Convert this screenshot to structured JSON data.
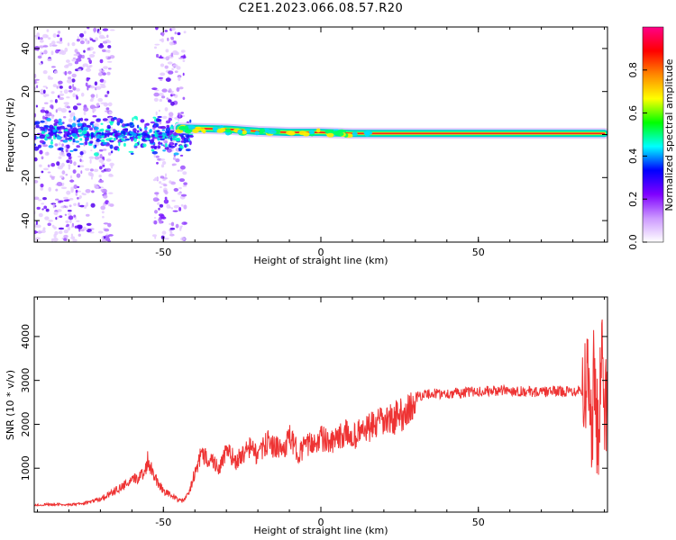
{
  "title": "C2E1.2023.066.08.57.R20",
  "colors": {
    "snr_line": "#ee3333",
    "ridge": "#ff2222",
    "colormap": [
      "#ffffff",
      "#cc99ff",
      "#7f00ff",
      "#0000ff",
      "#00ffff",
      "#00ff00",
      "#ffff00",
      "#ff8800",
      "#ff0000",
      "#ff0088"
    ]
  },
  "chart_data": [
    {
      "type": "heatmap",
      "xlabel": "Height of straight line (km)",
      "ylabel": "Frequency (Hz)",
      "xlim": [
        -91,
        91
      ],
      "ylim": [
        -50,
        50
      ],
      "xticks": [
        "-50",
        "0",
        "50"
      ],
      "yticks": [
        "-40",
        "-20",
        "0",
        "20",
        "40"
      ],
      "colorbar": {
        "label": "Normalized spectral amplitude",
        "range": [
          0,
          1
        ],
        "ticks": [
          "0.0",
          "0.2",
          "0.4",
          "0.6",
          "0.8"
        ]
      },
      "ridge": {
        "frequency": 0.5,
        "x": [
          -45,
          -30,
          -20,
          -10,
          0,
          10,
          20,
          40,
          60,
          80,
          90
        ],
        "y": [
          3,
          2.5,
          1.5,
          1,
          1,
          0.5,
          0.5,
          0.5,
          0.5,
          0.5,
          0.5
        ]
      },
      "regions": [
        {
          "name": "noisy band",
          "x_range": [
            -91,
            -66
          ],
          "note_visible": false
        },
        {
          "name": "noisy band",
          "x_range": [
            -53,
            -43
          ],
          "note_visible": false
        }
      ]
    },
    {
      "type": "line",
      "xlabel": "Height of straight line (km)",
      "ylabel": "SNR (10 * v/v)",
      "xlim": [
        -91,
        91
      ],
      "ylim": [
        0,
        4900
      ],
      "xticks": [
        "-50",
        "0",
        "50"
      ],
      "yticks": [
        "1000",
        "2000",
        "3000",
        "4000"
      ],
      "series": [
        {
          "x": [
            -91,
            -85,
            -80,
            -75,
            -70,
            -65,
            -60,
            -56,
            -55,
            -52,
            -50,
            -47,
            -44,
            -42,
            -40,
            -38,
            -35,
            -32,
            -30,
            -27,
            -25,
            -22,
            -20,
            -17,
            -15,
            -12,
            -10,
            -7,
            -5,
            -3,
            0,
            3,
            5,
            8,
            10,
            13,
            15,
            18,
            20,
            22,
            25,
            27,
            29,
            30,
            31,
            35,
            40,
            45,
            50,
            55,
            60,
            65,
            70,
            75,
            80,
            82,
            84,
            85,
            86,
            87,
            88,
            89,
            90,
            91
          ],
          "y": [
            150,
            180,
            160,
            200,
            300,
            500,
            700,
            900,
            1200,
            700,
            500,
            350,
            250,
            400,
            900,
            1300,
            1200,
            1000,
            1400,
            1150,
            1300,
            1500,
            1250,
            1600,
            1500,
            1400,
            1700,
            1350,
            1500,
            1550,
            1700,
            1550,
            1650,
            1800,
            1700,
            1850,
            1900,
            2000,
            2050,
            2100,
            2200,
            2300,
            2350,
            2600,
            2650,
            2700,
            2700,
            2720,
            2750,
            2760,
            2770,
            2750,
            2730,
            2760,
            2750,
            2800,
            2700,
            3200,
            2200,
            3400,
            1200,
            3800,
            2200,
            2700
          ]
        }
      ]
    }
  ]
}
